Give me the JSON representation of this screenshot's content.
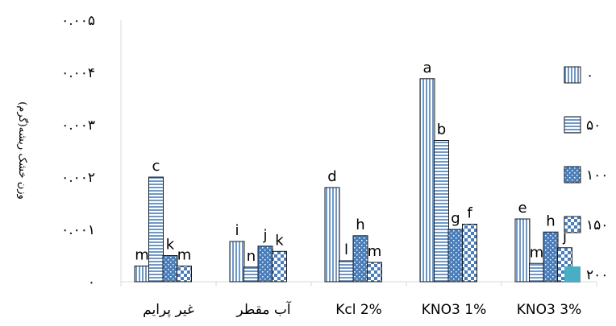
{
  "chart_data": {
    "type": "bar",
    "ylabel": "وزن خشک ریشه(گرم)",
    "ylim": [
      0,
      0.005
    ],
    "yticks": [
      {
        "value": 0,
        "label": "۰"
      },
      {
        "value": 0.001,
        "label": "۰.۰۰۱"
      },
      {
        "value": 0.002,
        "label": "۰.۰۰۲"
      },
      {
        "value": 0.003,
        "label": "۰.۰۰۳"
      },
      {
        "value": 0.004,
        "label": "۰.۰۰۴"
      },
      {
        "value": 0.005,
        "label": "۰.۰۰۵"
      }
    ],
    "categories": [
      "غیر پرایم",
      "آب مقطر",
      "Kcl 2%",
      "KNO3 1%",
      "KNO3 3%"
    ],
    "series": [
      {
        "name": "۰",
        "pattern": "vlines",
        "values": [
          0.0003,
          0.00077,
          0.0018,
          0.00388,
          0.0012
        ],
        "labels": [
          "m",
          "i",
          "d",
          "a",
          "e"
        ]
      },
      {
        "name": "۵۰",
        "pattern": "hlines",
        "values": [
          0.002,
          0.00028,
          0.0004,
          0.0027,
          0.00035
        ],
        "labels": [
          "c",
          "n",
          "l",
          "b",
          "m"
        ]
      },
      {
        "name": "۱۰۰",
        "pattern": "dots",
        "values": [
          0.0005,
          0.00068,
          0.00088,
          0.001,
          0.00095
        ],
        "labels": [
          "k",
          "j",
          "h",
          "g",
          "h"
        ]
      },
      {
        "name": "۱۵۰",
        "pattern": "checker",
        "values": [
          0.0003,
          0.00058,
          0.00037,
          0.0011,
          0.00065
        ],
        "labels": [
          "m",
          "k",
          "m",
          "f",
          "j"
        ]
      },
      {
        "name": "۲۰۰",
        "pattern": "solid",
        "values": [
          0,
          0,
          0,
          0,
          0
        ],
        "labels": [
          "",
          "",
          "",
          "",
          ""
        ]
      }
    ],
    "legend_position": "right",
    "grid": false,
    "colors": {
      "blue": "#4a7ebb",
      "teal": "#4bacc6",
      "stroke": "#1a1a1a"
    }
  }
}
